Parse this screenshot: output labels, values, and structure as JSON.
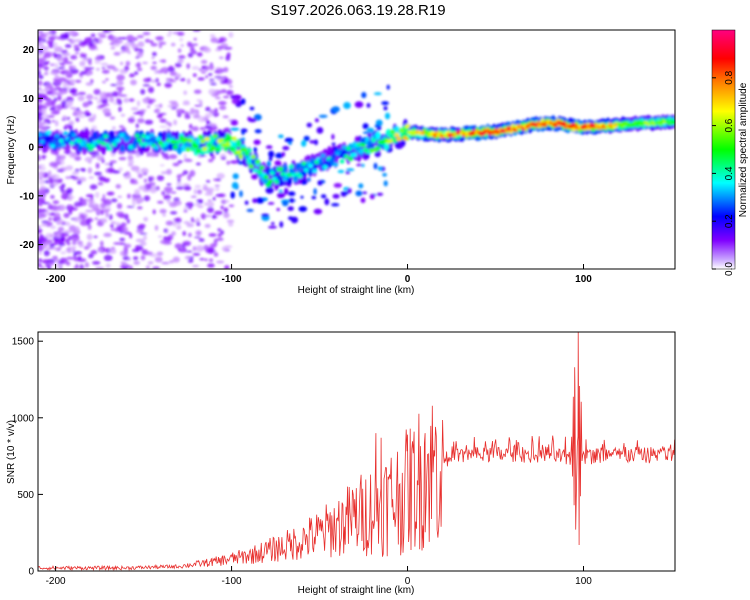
{
  "title": "S197.2026.063.19.28.R19",
  "chart_data": [
    {
      "type": "heatmap",
      "panel": "spectrogram",
      "xlabel": "Height of straight line (km)",
      "ylabel": "Frequency (Hz)",
      "xlim": [
        -210,
        152
      ],
      "ylim": [
        -25,
        24
      ],
      "xticks": [
        -200,
        -100,
        0,
        100
      ],
      "yticks": [
        20,
        10,
        0,
        -10,
        -20
      ],
      "colorbar": {
        "label": "Normalized spectral amplitude",
        "range": [
          0,
          1
        ],
        "ticks": [
          "0.0",
          "0.2",
          "0.4",
          "0.6",
          "0.8"
        ],
        "tick_values": [
          0.0,
          0.2,
          0.4,
          0.6,
          0.8
        ],
        "colors": [
          "#ffffff",
          "#8000ff",
          "#0000ff",
          "#00ffff",
          "#00ff00",
          "#ffff00",
          "#ff8000",
          "#ff0000",
          "#ff0080"
        ]
      },
      "ridge": [
        {
          "x": -200,
          "f": 1.5,
          "a": 0.35
        },
        {
          "x": -180,
          "f": 1.0,
          "a": 0.4
        },
        {
          "x": -160,
          "f": 1.2,
          "a": 0.4
        },
        {
          "x": -140,
          "f": 1.0,
          "a": 0.45
        },
        {
          "x": -120,
          "f": 0.5,
          "a": 0.55
        },
        {
          "x": -100,
          "f": 1.0,
          "a": 0.6
        },
        {
          "x": -90,
          "f": -2.0,
          "a": 0.55
        },
        {
          "x": -80,
          "f": -6.5,
          "a": 0.45
        },
        {
          "x": -60,
          "f": -5.0,
          "a": 0.4
        },
        {
          "x": -40,
          "f": -2.0,
          "a": 0.4
        },
        {
          "x": -20,
          "f": 0.5,
          "a": 0.5
        },
        {
          "x": 0,
          "f": 3.0,
          "a": 0.65
        },
        {
          "x": 20,
          "f": 2.5,
          "a": 0.75
        },
        {
          "x": 50,
          "f": 3.2,
          "a": 0.85
        },
        {
          "x": 80,
          "f": 5.0,
          "a": 0.8
        },
        {
          "x": 100,
          "f": 4.0,
          "a": 0.85
        },
        {
          "x": 130,
          "f": 4.8,
          "a": 0.55
        },
        {
          "x": 150,
          "f": 5.2,
          "a": 0.55
        }
      ]
    },
    {
      "type": "line",
      "panel": "snr",
      "xlabel": "Height of straight line (km)",
      "ylabel": "SNR (10 * v/v)",
      "xlim": [
        -210,
        152
      ],
      "ylim": [
        0,
        1560
      ],
      "xticks": [
        -200,
        -100,
        0,
        100
      ],
      "yticks": [
        0,
        500,
        1000,
        1500
      ],
      "line_color": "#e8302e",
      "series": [
        {
          "name": "SNR",
          "envelope": [
            {
              "x": -210,
              "y": 20
            },
            {
              "x": -160,
              "y": 20
            },
            {
              "x": -130,
              "y": 30
            },
            {
              "x": -110,
              "y": 60
            },
            {
              "x": -90,
              "y": 100
            },
            {
              "x": -70,
              "y": 160
            },
            {
              "x": -50,
              "y": 240
            },
            {
              "x": -30,
              "y": 350
            },
            {
              "x": -15,
              "y": 430
            },
            {
              "x": 0,
              "y": 520
            },
            {
              "x": 10,
              "y": 640
            },
            {
              "x": 20,
              "y": 720
            },
            {
              "x": 30,
              "y": 750
            },
            {
              "x": 50,
              "y": 760
            },
            {
              "x": 80,
              "y": 760
            },
            {
              "x": 90,
              "y": 740
            },
            {
              "x": 100,
              "y": 750
            },
            {
              "x": 150,
              "y": 760
            }
          ],
          "peaks": [
            {
              "x": -18,
              "y": 900
            },
            {
              "x": -15,
              "y": 870
            },
            {
              "x": 0,
              "y": 890
            },
            {
              "x": 10,
              "y": 900
            },
            {
              "x": 95,
              "y": 1330
            },
            {
              "x": 97,
              "y": 1560
            },
            {
              "x": 97.5,
              "y": 170
            }
          ]
        }
      ]
    }
  ]
}
